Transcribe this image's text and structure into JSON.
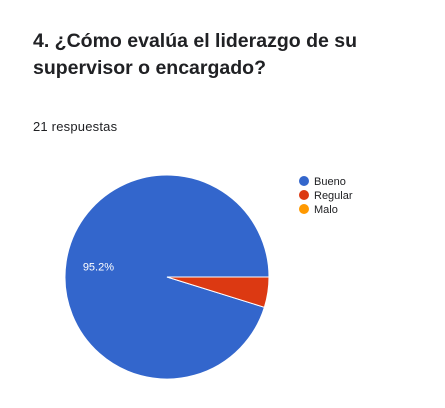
{
  "title": "4. ¿Cómo evalúa el liderazgo de su supervisor o encargado?",
  "responses": "21 respuestas",
  "chart_data": {
    "type": "pie",
    "categories": [
      "Bueno",
      "Regular",
      "Malo"
    ],
    "values": [
      95.2,
      4.8,
      0
    ],
    "colors": [
      "#3366cc",
      "#dc3912",
      "#ff9900"
    ],
    "data_labels": [
      "95.2%",
      "",
      ""
    ],
    "legend_position": "right",
    "start_angle": "3 o'clock, counter-clockwise"
  }
}
